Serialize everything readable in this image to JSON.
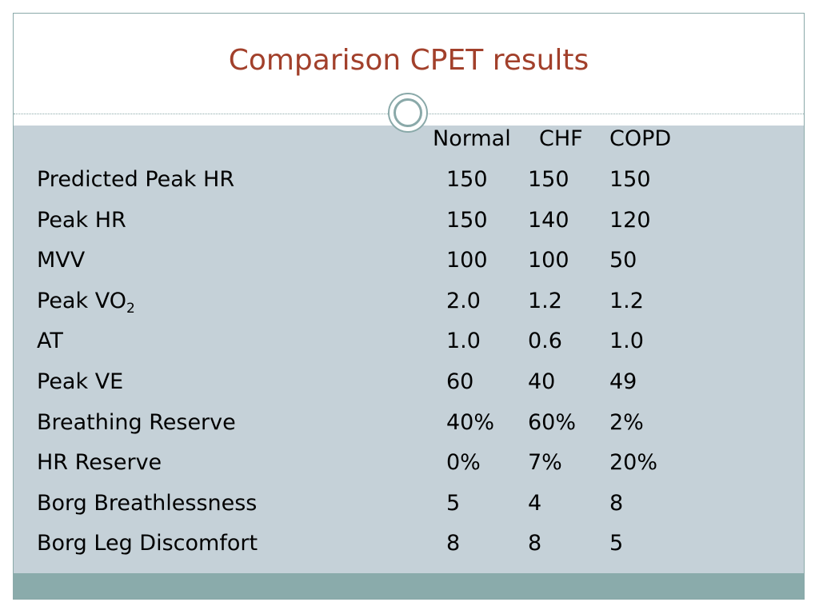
{
  "slide": {
    "title": "Comparison CPET results",
    "columns": [
      "Normal",
      "CHF",
      "COPD"
    ],
    "rows": [
      {
        "label": "Predicted Peak HR",
        "normal": "150",
        "chf": "150",
        "copd": "150"
      },
      {
        "label": "Peak HR",
        "normal": "150",
        "chf": "140",
        "copd": "120"
      },
      {
        "label": "MVV",
        "normal": "100",
        "chf": "100",
        "copd": "50"
      },
      {
        "label_main": "Peak VO",
        "label_sub": "2",
        "normal": "2.0",
        "chf": "1.2",
        "copd": "1.2"
      },
      {
        "label": "AT",
        "normal": "1.0",
        "chf": "0.6",
        "copd": "1.0"
      },
      {
        "label": "Peak VE",
        "normal": "60",
        "chf": "40",
        "copd": "49"
      },
      {
        "label": "Breathing Reserve",
        "normal": "40%",
        "chf": "60%",
        "copd": "2%"
      },
      {
        "label": "HR Reserve",
        "normal": "0%",
        "chf": "7%",
        "copd": "20%"
      },
      {
        "label": "Borg Breathlessness",
        "normal": "5",
        "chf": "4",
        "copd": "8"
      },
      {
        "label": "Borg Leg Discomfort",
        "normal": "8",
        "chf": "8",
        "copd": "5"
      }
    ]
  },
  "theme": {
    "title_color": "#a2402b",
    "content_bg": "#c5d1d8",
    "footer_band": "#8aabab",
    "border": "#8aa9a9"
  }
}
